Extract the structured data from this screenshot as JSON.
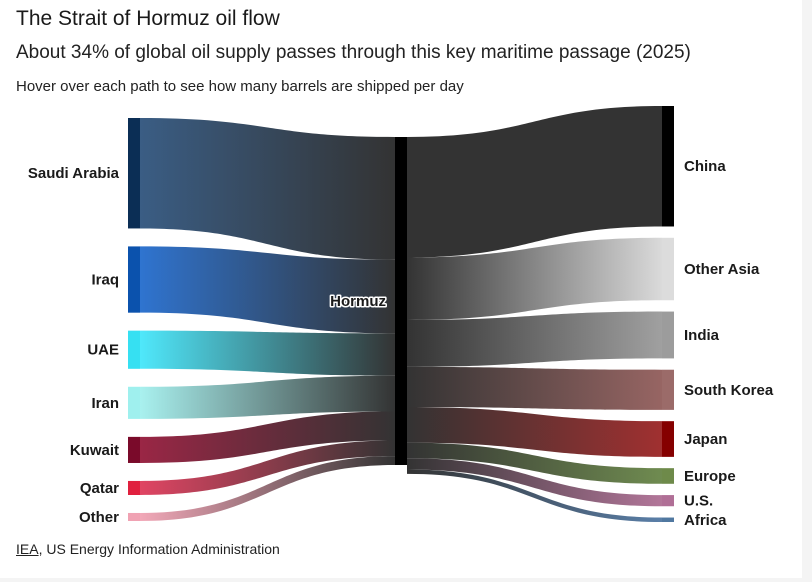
{
  "title": "The Strait of Hormuz oil flow",
  "subtitle": "About 34% of global oil supply passes through this key maritime passage (2025)",
  "hint": "Hover over each path to see how many barrels are shipped per day",
  "source": {
    "link_text": "IEA",
    "rest_text": ", US Energy Information Administration"
  },
  "chart_data": {
    "type": "sankey",
    "hub": {
      "name": "Hormuz",
      "color": "#000000"
    },
    "sources": [
      {
        "name": "Saudi Arabia",
        "value": 5.5,
        "color": "#0b2e55",
        "link_color": "#3a5d84"
      },
      {
        "name": "Iraq",
        "value": 3.3,
        "color": "#0b52ad",
        "link_color": "#2f74d0"
      },
      {
        "name": "UAE",
        "value": 1.9,
        "color": "#36e0f2",
        "link_color": "#4fe8fb"
      },
      {
        "name": "Iran",
        "value": 1.6,
        "color": "#9ff0ee",
        "link_color": "#a9f1ef"
      },
      {
        "name": "Kuwait",
        "value": 1.3,
        "color": "#7a0a2a",
        "link_color": "#9a2645"
      },
      {
        "name": "Qatar",
        "value": 0.7,
        "color": "#e0203e",
        "link_color": "#e04563"
      },
      {
        "name": "Other",
        "value": 0.4,
        "color": "#f0a2b3",
        "link_color": "#f2a8b8"
      }
    ],
    "targets": [
      {
        "name": "China",
        "value": 5.4,
        "color": "#000000",
        "link_color": "#333333"
      },
      {
        "name": "Other Asia",
        "value": 2.8,
        "color": "#dcdcdc",
        "link_color": "#dadada"
      },
      {
        "name": "India",
        "value": 2.1,
        "color": "#9c9c9c",
        "link_color": "#a0a0a0"
      },
      {
        "name": "South Korea",
        "value": 1.8,
        "color": "#9b6b69",
        "link_color": "#976563"
      },
      {
        "name": "Japan",
        "value": 1.6,
        "color": "#850000",
        "link_color": "#a03030"
      },
      {
        "name": "Europe",
        "value": 0.7,
        "color": "#6e8a4a",
        "link_color": "#6f8b50"
      },
      {
        "name": "U.S.",
        "value": 0.5,
        "color": "#b06f96",
        "link_color": "#b27699"
      },
      {
        "name": "Africa",
        "value": 0.2,
        "color": "#5078a0",
        "link_color": "#5a7fa8"
      }
    ]
  }
}
